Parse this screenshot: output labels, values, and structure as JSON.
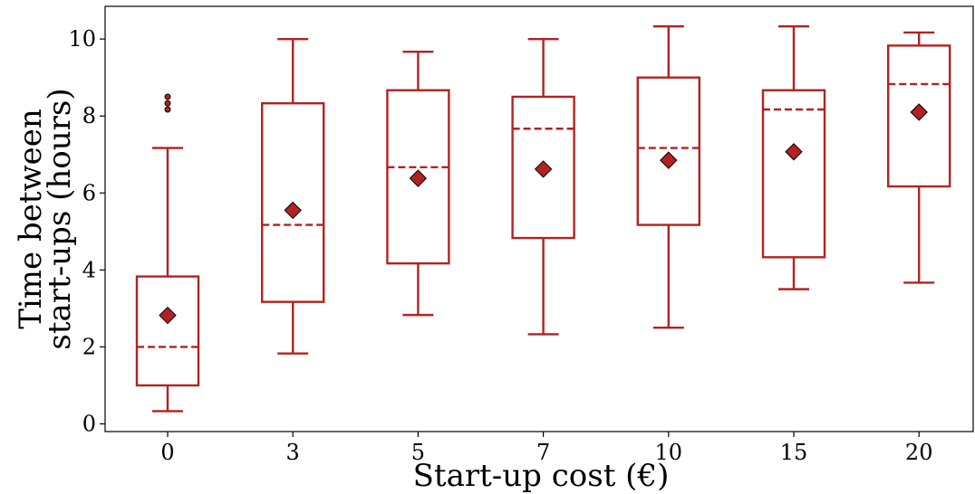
{
  "chart_data": {
    "type": "box",
    "xlabel": "Start-up cost (€)",
    "ylabel_lines": [
      "Time between",
      "start-ups (hours)"
    ],
    "ylim": [
      -0.2,
      10.85
    ],
    "yticks": [
      0,
      2,
      4,
      6,
      8,
      10
    ],
    "grid": false,
    "colors": {
      "box": "#b22222",
      "mean_marker": "#b22222",
      "outlier": "#b22222"
    },
    "boxes": [
      {
        "category": "0",
        "whisker_low": 0.33,
        "q1": 1.0,
        "median": 2.0,
        "q3": 3.83,
        "whisker_high": 7.17,
        "mean": 2.82,
        "outliers": [
          8.17,
          8.33,
          8.5
        ]
      },
      {
        "category": "3",
        "whisker_low": 1.83,
        "q1": 3.17,
        "median": 5.17,
        "q3": 8.33,
        "whisker_high": 10.0,
        "mean": 5.55,
        "outliers": []
      },
      {
        "category": "5",
        "whisker_low": 2.83,
        "q1": 4.17,
        "median": 6.67,
        "q3": 8.67,
        "whisker_high": 9.67,
        "mean": 6.38,
        "outliers": []
      },
      {
        "category": "7",
        "whisker_low": 2.33,
        "q1": 4.83,
        "median": 7.67,
        "q3": 8.5,
        "whisker_high": 10.0,
        "mean": 6.62,
        "outliers": []
      },
      {
        "category": "10",
        "whisker_low": 2.5,
        "q1": 5.17,
        "median": 7.17,
        "q3": 9.0,
        "whisker_high": 10.33,
        "mean": 6.85,
        "outliers": []
      },
      {
        "category": "15",
        "whisker_low": 3.5,
        "q1": 4.33,
        "median": 8.17,
        "q3": 8.67,
        "whisker_high": 10.33,
        "mean": 7.07,
        "outliers": []
      },
      {
        "category": "20",
        "whisker_low": 3.67,
        "q1": 6.17,
        "median": 8.83,
        "q3": 9.83,
        "whisker_high": 10.17,
        "mean": 8.1,
        "outliers": []
      }
    ]
  }
}
